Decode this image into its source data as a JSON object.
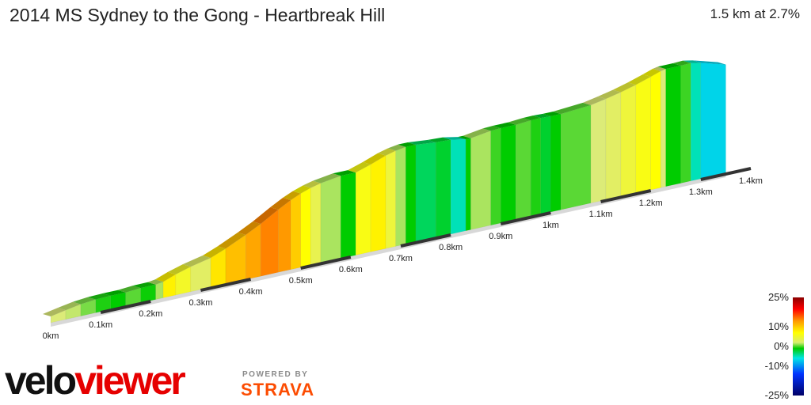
{
  "header": {
    "title": "2014 MS Sydney to the Gong - Heartbreak Hill",
    "summary": "1.5 km at 2.7%"
  },
  "branding": {
    "logo_part1": "velo",
    "logo_part2": "viewer",
    "powered_by": "POWERED BY",
    "strava": "STRAVA",
    "logo_color": "#e60000",
    "strava_color": "#fc4c02"
  },
  "legend": {
    "labels": [
      "25%",
      "10%",
      "0%",
      "-10%",
      "-25%"
    ],
    "values": [
      25,
      10,
      0,
      -10,
      -25
    ]
  },
  "chart_data": {
    "type": "area",
    "title": "2014 MS Sydney to the Gong - Heartbreak Hill",
    "x_tick_labels": [
      "0km",
      "0.1km",
      "0.2km",
      "0.3km",
      "0.4km",
      "0.5km",
      "0.6km",
      "0.7km",
      "0.8km",
      "0.9km",
      "1km",
      "1.1km",
      "1.2km",
      "1.3km",
      "1.4km"
    ],
    "x_ticks_km": [
      0,
      0.1,
      0.2,
      0.3,
      0.4,
      0.5,
      0.6,
      0.7,
      0.8,
      0.9,
      1.0,
      1.1,
      1.2,
      1.3,
      1.4
    ],
    "distance_km": 1.5,
    "average_gradient_pct": 2.7,
    "color_scale": {
      "min_pct": -25,
      "max_pct": 25,
      "labels_pct": [
        25,
        10,
        0,
        -10,
        -25
      ]
    },
    "segments": [
      {
        "start_km": 0.0,
        "end_km": 0.03,
        "gradient_pct": 4.0
      },
      {
        "start_km": 0.03,
        "end_km": 0.06,
        "gradient_pct": 3.5
      },
      {
        "start_km": 0.06,
        "end_km": 0.09,
        "gradient_pct": 2.0
      },
      {
        "start_km": 0.09,
        "end_km": 0.12,
        "gradient_pct": 0.5
      },
      {
        "start_km": 0.12,
        "end_km": 0.15,
        "gradient_pct": 0.0
      },
      {
        "start_km": 0.15,
        "end_km": 0.18,
        "gradient_pct": 1.5
      },
      {
        "start_km": 0.18,
        "end_km": 0.21,
        "gradient_pct": 0.2
      },
      {
        "start_km": 0.21,
        "end_km": 0.225,
        "gradient_pct": 3.0
      },
      {
        "start_km": 0.225,
        "end_km": 0.25,
        "gradient_pct": 7.5
      },
      {
        "start_km": 0.25,
        "end_km": 0.28,
        "gradient_pct": 6.0
      },
      {
        "start_km": 0.28,
        "end_km": 0.32,
        "gradient_pct": 4.5
      },
      {
        "start_km": 0.32,
        "end_km": 0.35,
        "gradient_pct": 8.0
      },
      {
        "start_km": 0.35,
        "end_km": 0.39,
        "gradient_pct": 9.5
      },
      {
        "start_km": 0.39,
        "end_km": 0.42,
        "gradient_pct": 10.5
      },
      {
        "start_km": 0.42,
        "end_km": 0.455,
        "gradient_pct": 12.0
      },
      {
        "start_km": 0.455,
        "end_km": 0.48,
        "gradient_pct": 11.0
      },
      {
        "start_km": 0.48,
        "end_km": 0.5,
        "gradient_pct": 9.0
      },
      {
        "start_km": 0.5,
        "end_km": 0.52,
        "gradient_pct": 7.0
      },
      {
        "start_km": 0.52,
        "end_km": 0.54,
        "gradient_pct": 5.0
      },
      {
        "start_km": 0.54,
        "end_km": 0.58,
        "gradient_pct": 3.0
      },
      {
        "start_km": 0.58,
        "end_km": 0.61,
        "gradient_pct": 0.0
      },
      {
        "start_km": 0.61,
        "end_km": 0.64,
        "gradient_pct": 6.5
      },
      {
        "start_km": 0.64,
        "end_km": 0.67,
        "gradient_pct": 7.5
      },
      {
        "start_km": 0.67,
        "end_km": 0.69,
        "gradient_pct": 5.5
      },
      {
        "start_km": 0.69,
        "end_km": 0.71,
        "gradient_pct": 3.0
      },
      {
        "start_km": 0.71,
        "end_km": 0.73,
        "gradient_pct": 0.0
      },
      {
        "start_km": 0.73,
        "end_km": 0.77,
        "gradient_pct": -2.0
      },
      {
        "start_km": 0.77,
        "end_km": 0.8,
        "gradient_pct": -1.0
      },
      {
        "start_km": 0.8,
        "end_km": 0.83,
        "gradient_pct": -4.0
      },
      {
        "start_km": 0.83,
        "end_km": 0.84,
        "gradient_pct": 0.0
      },
      {
        "start_km": 0.84,
        "end_km": 0.88,
        "gradient_pct": 3.0
      },
      {
        "start_km": 0.88,
        "end_km": 0.9,
        "gradient_pct": 1.0
      },
      {
        "start_km": 0.9,
        "end_km": 0.93,
        "gradient_pct": 0.0
      },
      {
        "start_km": 0.93,
        "end_km": 0.96,
        "gradient_pct": 1.5
      },
      {
        "start_km": 0.96,
        "end_km": 0.98,
        "gradient_pct": 0.5
      },
      {
        "start_km": 0.98,
        "end_km": 1.0,
        "gradient_pct": -1.0
      },
      {
        "start_km": 1.0,
        "end_km": 1.02,
        "gradient_pct": 0.0
      },
      {
        "start_km": 1.02,
        "end_km": 1.08,
        "gradient_pct": 1.5
      },
      {
        "start_km": 1.08,
        "end_km": 1.11,
        "gradient_pct": 4.0
      },
      {
        "start_km": 1.11,
        "end_km": 1.14,
        "gradient_pct": 4.5
      },
      {
        "start_km": 1.14,
        "end_km": 1.17,
        "gradient_pct": 5.5
      },
      {
        "start_km": 1.17,
        "end_km": 1.2,
        "gradient_pct": 6.5
      },
      {
        "start_km": 1.2,
        "end_km": 1.22,
        "gradient_pct": 7.0
      },
      {
        "start_km": 1.22,
        "end_km": 1.23,
        "gradient_pct": 4.0
      },
      {
        "start_km": 1.23,
        "end_km": 1.26,
        "gradient_pct": 0.0
      },
      {
        "start_km": 1.26,
        "end_km": 1.28,
        "gradient_pct": 1.0
      },
      {
        "start_km": 1.28,
        "end_km": 1.3,
        "gradient_pct": -4.0
      },
      {
        "start_km": 1.3,
        "end_km": 1.35,
        "gradient_pct": -6.0
      }
    ]
  }
}
